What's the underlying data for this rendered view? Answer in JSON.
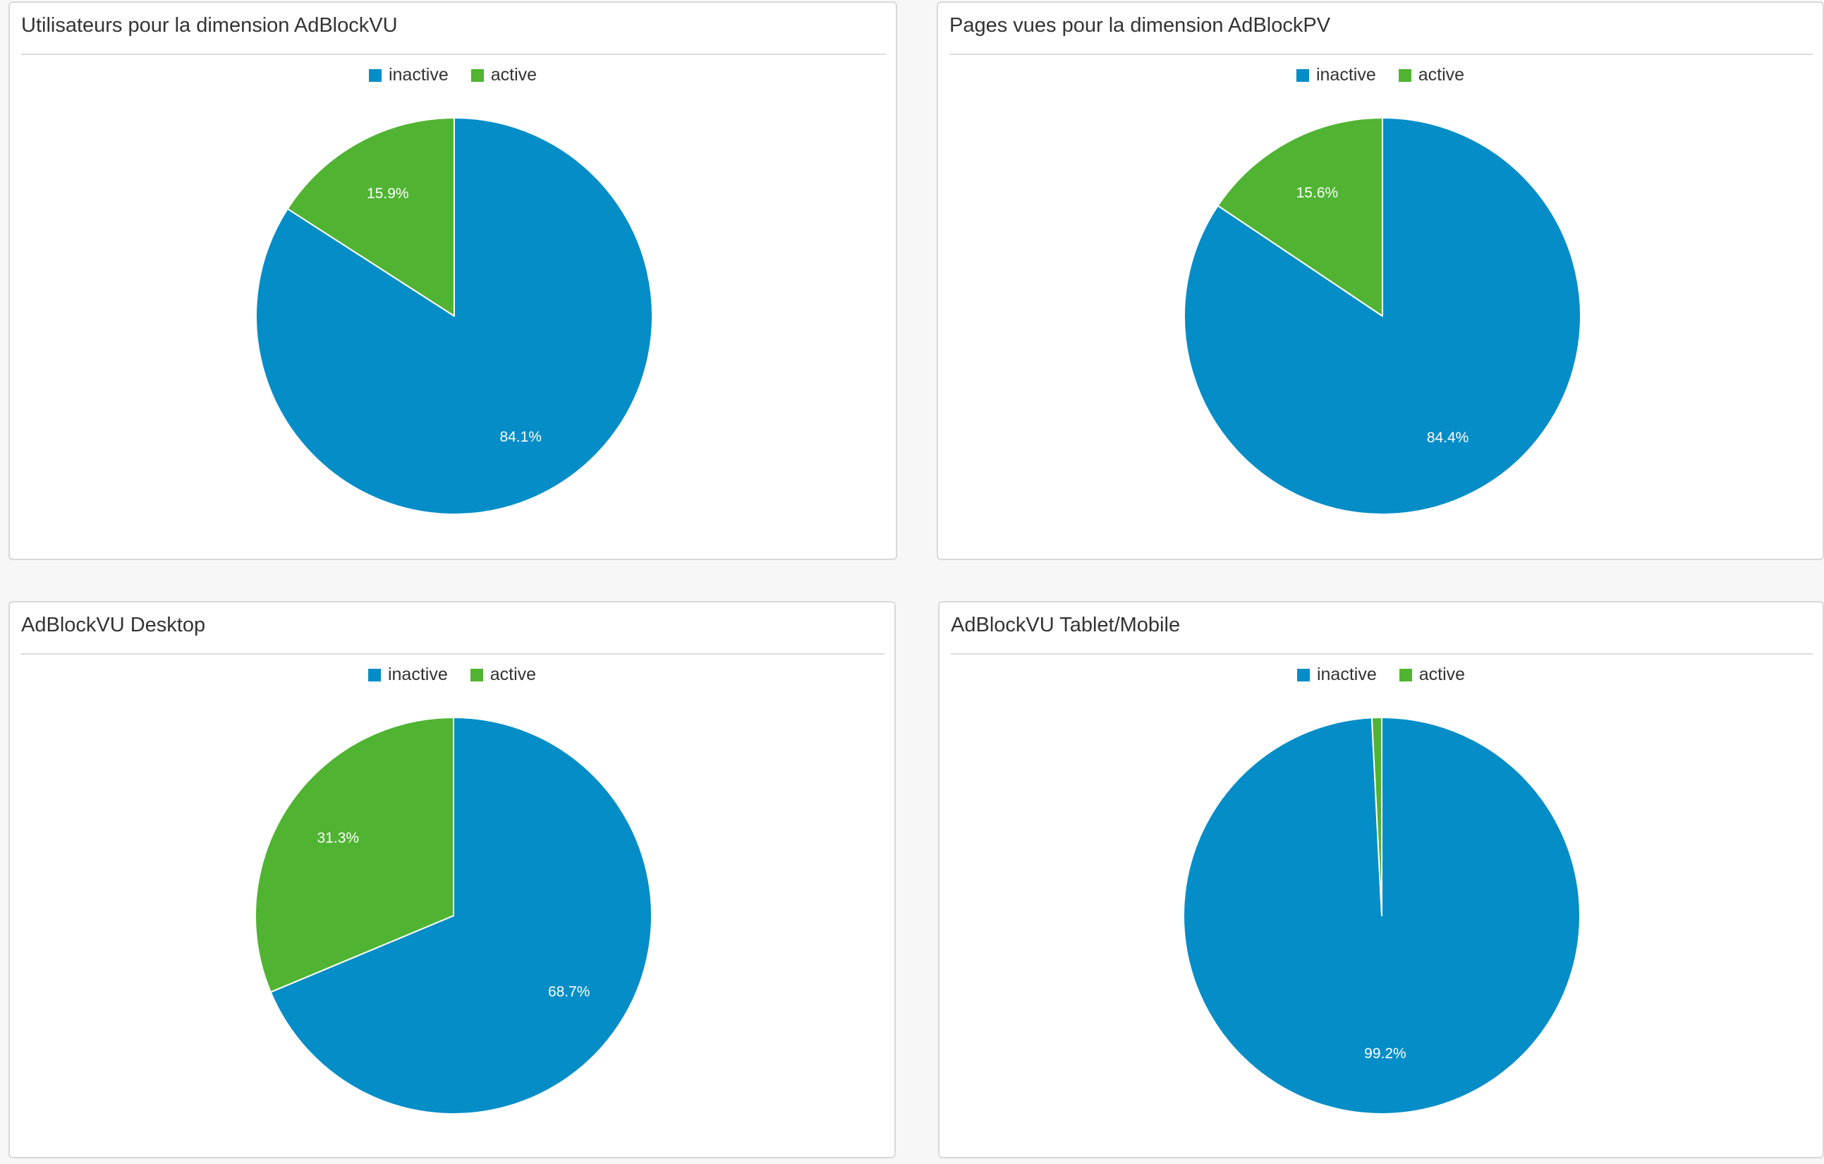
{
  "chart_data": [
    {
      "type": "pie",
      "title": "Utilisateurs pour la dimension AdBlockVU",
      "legend": "top",
      "categories": [
        "inactive",
        "active"
      ],
      "values": [
        84.1,
        15.9
      ],
      "labels": [
        "84.1%",
        "15.9%"
      ],
      "colors": [
        "#058DC7",
        "#50B432"
      ]
    },
    {
      "type": "pie",
      "title": "Pages vues pour la dimension AdBlockPV",
      "legend": "top",
      "categories": [
        "inactive",
        "active"
      ],
      "values": [
        84.4,
        15.6
      ],
      "labels": [
        "84.4%",
        "15.6%"
      ],
      "colors": [
        "#058DC7",
        "#50B432"
      ]
    },
    {
      "type": "pie",
      "title": "AdBlockVU Desktop",
      "legend": "top",
      "categories": [
        "inactive",
        "active"
      ],
      "values": [
        68.7,
        31.3
      ],
      "labels": [
        "68.7%",
        "31.3%"
      ],
      "colors": [
        "#058DC7",
        "#50B432"
      ]
    },
    {
      "type": "pie",
      "title": "AdBlockVU Tablet/Mobile",
      "legend": "top",
      "categories": [
        "inactive",
        "active"
      ],
      "values": [
        99.2,
        0.8
      ],
      "labels": [
        "99.2%",
        ""
      ],
      "colors": [
        "#058DC7",
        "#50B432"
      ]
    }
  ]
}
